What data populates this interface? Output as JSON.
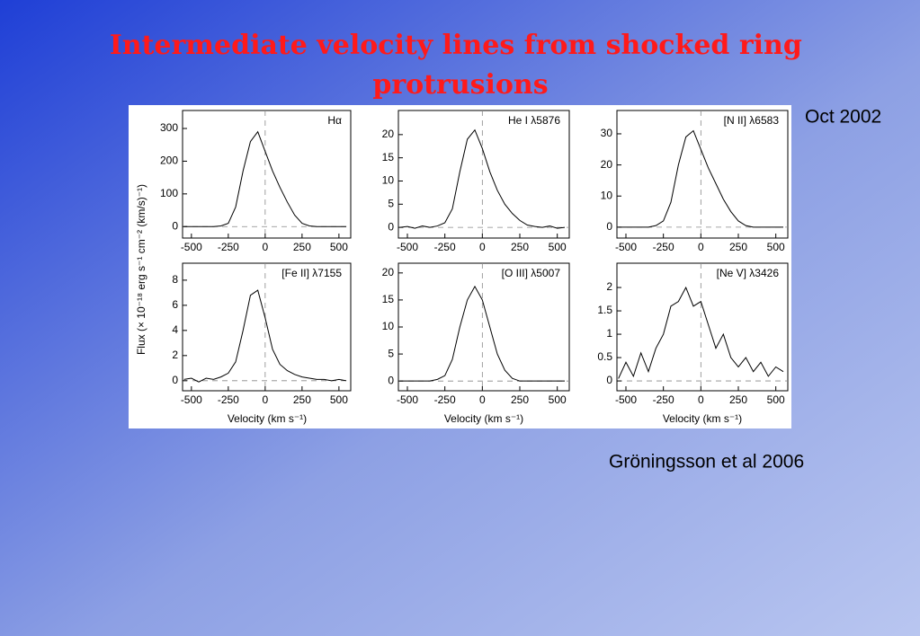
{
  "title": "Intermediate velocity lines from shocked ring protrusions",
  "date": "Oct 2002",
  "credit": "Gröningsson et al 2006",
  "figure": {
    "y_label": "Flux (× 10⁻¹⁸ erg s⁻¹ cm⁻² (km/s)⁻¹)",
    "x_label": "Velocity (km s⁻¹)"
  },
  "chart_data": [
    {
      "type": "line",
      "title": "Hα",
      "x": [
        -550,
        -500,
        -450,
        -400,
        -350,
        -300,
        -250,
        -200,
        -150,
        -100,
        -50,
        0,
        50,
        100,
        150,
        200,
        250,
        300,
        350,
        400,
        450,
        500,
        550
      ],
      "series": [
        {
          "color": "#000000",
          "values": [
            0,
            0,
            0,
            0,
            0,
            2,
            10,
            60,
            170,
            260,
            290,
            230,
            170,
            120,
            75,
            35,
            10,
            2,
            0,
            0,
            0,
            0,
            0
          ]
        }
      ],
      "xlim": [
        -560,
        580
      ],
      "xticks": [
        -500,
        -250,
        0,
        250,
        500
      ],
      "ylim": [
        -35,
        355
      ],
      "yticks": [
        0,
        100,
        200,
        300
      ]
    },
    {
      "type": "line",
      "title": "He I λ5876",
      "x": [
        -550,
        -500,
        -450,
        -400,
        -350,
        -300,
        -250,
        -200,
        -150,
        -100,
        -50,
        0,
        50,
        100,
        150,
        200,
        250,
        300,
        350,
        400,
        450,
        500,
        550
      ],
      "series": [
        {
          "color": "#000000",
          "values": [
            0,
            0.2,
            -0.2,
            0.3,
            0,
            0.3,
            1,
            4,
            12,
            19,
            21,
            17,
            12,
            8,
            5,
            3,
            1.5,
            0.5,
            0.2,
            0,
            0.3,
            -0.2,
            0
          ]
        }
      ],
      "xlim": [
        -560,
        580
      ],
      "xticks": [
        -500,
        -250,
        0,
        250,
        500
      ],
      "ylim": [
        -2.3,
        25.2
      ],
      "yticks": [
        0,
        5,
        10,
        15,
        20
      ]
    },
    {
      "type": "line",
      "title": "[N II] λ6583",
      "x": [
        -550,
        -500,
        -450,
        -400,
        -350,
        -300,
        -250,
        -200,
        -150,
        -100,
        -50,
        0,
        50,
        100,
        150,
        200,
        250,
        300,
        350,
        400,
        450,
        500,
        550
      ],
      "series": [
        {
          "color": "#000000",
          "values": [
            0,
            0,
            0,
            0,
            0,
            0.5,
            2,
            8,
            20,
            29,
            31,
            25,
            19,
            14,
            9,
            5,
            2,
            0.5,
            0,
            0,
            0,
            0,
            0
          ]
        }
      ],
      "xlim": [
        -560,
        580
      ],
      "xticks": [
        -500,
        -250,
        0,
        250,
        500
      ],
      "ylim": [
        -3.5,
        37.5
      ],
      "yticks": [
        0,
        10,
        20,
        30
      ]
    },
    {
      "type": "line",
      "title": "[Fe II] λ7155",
      "x": [
        -550,
        -500,
        -450,
        -400,
        -350,
        -300,
        -250,
        -200,
        -150,
        -100,
        -50,
        0,
        50,
        100,
        150,
        200,
        250,
        300,
        350,
        400,
        450,
        500,
        550
      ],
      "series": [
        {
          "color": "#000000",
          "values": [
            0.1,
            0.2,
            -0.1,
            0.2,
            0.1,
            0.3,
            0.6,
            1.5,
            4,
            6.8,
            7.2,
            5,
            2.5,
            1.3,
            0.8,
            0.5,
            0.3,
            0.2,
            0.1,
            0.1,
            0,
            0.1,
            0
          ]
        }
      ],
      "xlim": [
        -560,
        580
      ],
      "xticks": [
        -500,
        -250,
        0,
        250,
        500
      ],
      "ylim": [
        -0.8,
        9.35
      ],
      "yticks": [
        0,
        2,
        4,
        6,
        8
      ]
    },
    {
      "type": "line",
      "title": "[O III] λ5007",
      "x": [
        -550,
        -500,
        -450,
        -400,
        -350,
        -300,
        -250,
        -200,
        -150,
        -100,
        -50,
        0,
        50,
        100,
        150,
        200,
        250,
        300,
        350,
        400,
        450,
        500,
        550
      ],
      "series": [
        {
          "color": "#000000",
          "values": [
            0,
            0,
            0,
            0,
            0,
            0.3,
            1,
            4,
            10,
            15,
            17.5,
            15,
            10,
            5,
            2,
            0.5,
            0,
            0,
            0,
            0,
            0,
            0,
            0
          ]
        }
      ],
      "xlim": [
        -560,
        580
      ],
      "xticks": [
        -500,
        -250,
        0,
        250,
        500
      ],
      "ylim": [
        -1.8,
        21.8
      ],
      "yticks": [
        0,
        5,
        10,
        15,
        20
      ]
    },
    {
      "type": "line",
      "title": "[Ne V] λ3426",
      "x": [
        -550,
        -500,
        -450,
        -400,
        -350,
        -300,
        -250,
        -200,
        -150,
        -100,
        -50,
        0,
        50,
        100,
        150,
        200,
        250,
        300,
        350,
        400,
        450,
        500,
        550
      ],
      "series": [
        {
          "color": "#000000",
          "values": [
            0.05,
            0.4,
            0.1,
            0.6,
            0.2,
            0.7,
            1.0,
            1.6,
            1.7,
            2.0,
            1.6,
            1.7,
            1.2,
            0.7,
            1.0,
            0.5,
            0.3,
            0.5,
            0.2,
            0.4,
            0.1,
            0.3,
            0.2
          ]
        }
      ],
      "xlim": [
        -560,
        580
      ],
      "xticks": [
        -500,
        -250,
        0,
        250,
        500
      ],
      "ylim": [
        -0.21,
        2.52
      ],
      "yticks": [
        0,
        0.5,
        1,
        1.5,
        2
      ]
    }
  ]
}
